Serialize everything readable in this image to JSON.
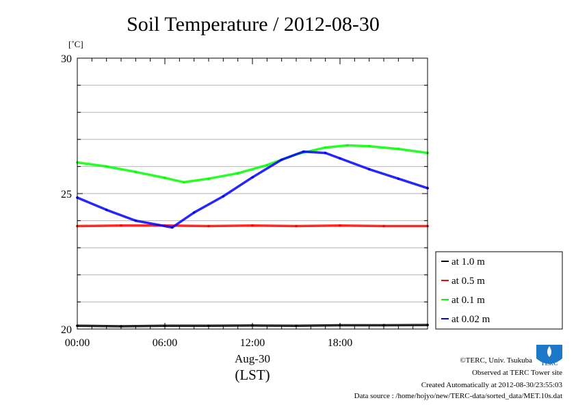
{
  "chart_data": {
    "type": "line",
    "title": "Soil Temperature / 2012-08-30",
    "ylabel": "[˚C]",
    "xlabel": "Aug-30",
    "xlabel2": "(LST)",
    "ylim": [
      20,
      30
    ],
    "xlim": [
      0,
      24
    ],
    "yticks": [
      {
        "v": 20,
        "label": "20"
      },
      {
        "v": 25,
        "label": "25"
      },
      {
        "v": 30,
        "label": "30"
      }
    ],
    "ygrid": [
      21,
      22,
      23,
      24,
      25,
      26,
      27,
      28,
      29
    ],
    "xticks": [
      {
        "v": 0,
        "label": "00:00"
      },
      {
        "v": 6,
        "label": "06:00"
      },
      {
        "v": 12,
        "label": "12:00"
      },
      {
        "v": 18,
        "label": "18:00"
      }
    ],
    "grid": true,
    "legend_position": "right",
    "series": [
      {
        "name": "at 1.0 m",
        "color": "#000000",
        "x": [
          0,
          3,
          6,
          9,
          12,
          15,
          18,
          21,
          24
        ],
        "y": [
          20.12,
          20.1,
          20.12,
          20.12,
          20.13,
          20.12,
          20.14,
          20.14,
          20.15
        ]
      },
      {
        "name": "at 0.5 m",
        "color": "#ff0000",
        "x": [
          0,
          3,
          6,
          9,
          12,
          15,
          18,
          21,
          24
        ],
        "y": [
          23.8,
          23.82,
          23.82,
          23.8,
          23.82,
          23.8,
          23.82,
          23.8,
          23.8
        ]
      },
      {
        "name": "at 0.1 m",
        "color": "#00ff00",
        "x": [
          0,
          2,
          4,
          6,
          7.3,
          9,
          11,
          13,
          15,
          17,
          18.5,
          20,
          22,
          24
        ],
        "y": [
          26.15,
          26.0,
          25.8,
          25.58,
          25.42,
          25.55,
          25.75,
          26.05,
          26.45,
          26.7,
          26.78,
          26.75,
          26.65,
          26.5
        ]
      },
      {
        "name": "at 0.02 m",
        "color": "#0000ff",
        "x": [
          0,
          2,
          4,
          6.5,
          8,
          10,
          12,
          14,
          15.5,
          17,
          18,
          20,
          22,
          24
        ],
        "y": [
          24.85,
          24.4,
          24.0,
          23.75,
          24.3,
          24.9,
          25.6,
          26.25,
          26.55,
          26.5,
          26.3,
          25.9,
          25.55,
          25.2
        ]
      }
    ]
  },
  "footer": {
    "credit": "©TERC, Univ. Tsukuba",
    "observed": "Observed at TERC Tower site",
    "created": "Created Automatically at 2012-08-30/23:55:03",
    "source": "Data source : /home/hojyo/new/TERC-data/sorted_data/MET.10s.dat"
  },
  "logo": {
    "text": "TERC",
    "color": "#1e78c8"
  }
}
